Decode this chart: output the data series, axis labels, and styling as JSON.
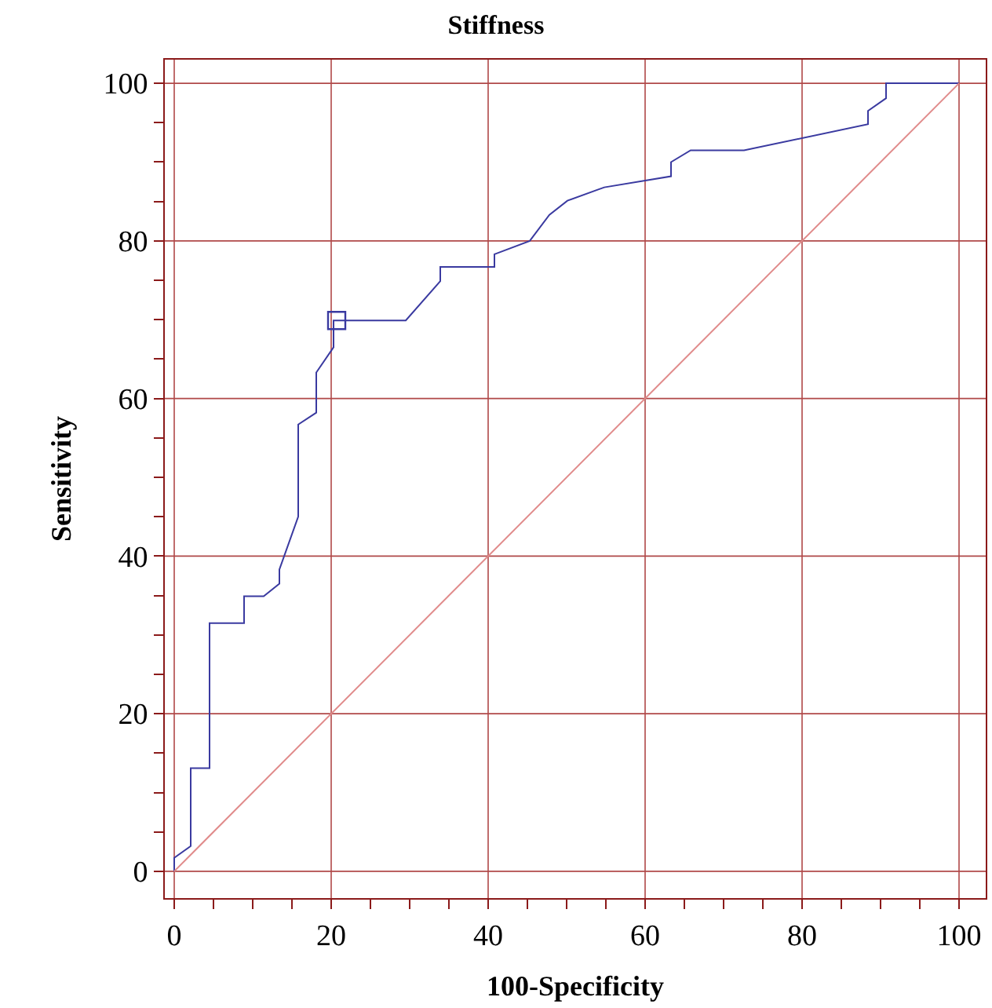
{
  "chart_data": {
    "type": "line",
    "title": "Stiffness",
    "xlabel": "100-Specificity",
    "ylabel": "Sensitivity",
    "series": [
      {
        "color": "#3a3aa0",
        "x": [
          0,
          0,
          2.1,
          2.1,
          4.5,
          4.5,
          8.9,
          8.9,
          11.4,
          13.4,
          13.4,
          15.8,
          15.8,
          18.1,
          18.1,
          20.3,
          20.3,
          29.5,
          33.9,
          33.9,
          40.8,
          40.8,
          45.3,
          47.8,
          50.1,
          54.8,
          63.3,
          63.3,
          65.8,
          72.6,
          88.4,
          88.4,
          90.7,
          90.7,
          100
        ],
        "values": [
          0,
          1.7,
          3.2,
          13.1,
          13.1,
          31.5,
          31.5,
          34.9,
          34.9,
          36.5,
          38.3,
          45,
          56.7,
          58.2,
          63.3,
          66.5,
          69.9,
          69.9,
          74.9,
          76.7,
          76.7,
          78.3,
          80,
          83.3,
          85.1,
          86.8,
          88.2,
          90,
          91.5,
          91.5,
          94.8,
          96.5,
          98.1,
          100,
          100
        ]
      },
      {
        "color": "#e08a8a",
        "x": [
          0,
          100
        ],
        "values": [
          0,
          100
        ]
      },
      {
        "type": "scatter",
        "color": "#3a3aa0",
        "marker": "square",
        "x": [
          20.7
        ],
        "values": [
          69.9
        ]
      }
    ],
    "xlim": [
      -1.2,
      103.4
    ],
    "ylim": [
      -3.4,
      103
    ],
    "xticks": [
      0,
      {
        "value": 5,
        "label": null
      },
      {
        "value": 10,
        "label": null
      },
      {
        "value": 15,
        "label": null
      },
      20,
      {
        "value": 25,
        "label": null
      },
      {
        "value": 30,
        "label": null
      },
      {
        "value": 35,
        "label": null
      },
      40,
      {
        "value": 45,
        "label": null
      },
      {
        "value": 50,
        "label": null
      },
      {
        "value": 55,
        "label": null
      },
      60,
      {
        "value": 65,
        "label": null
      },
      {
        "value": 70,
        "label": null
      },
      {
        "value": 75,
        "label": null
      },
      80,
      {
        "value": 85,
        "label": null
      },
      {
        "value": 90,
        "label": null
      },
      {
        "value": 95,
        "label": null
      },
      100
    ],
    "yticks": [
      0,
      {
        "value": 5,
        "label": null
      },
      {
        "value": 10,
        "label": null
      },
      {
        "value": 15,
        "label": null
      },
      20,
      {
        "value": 25,
        "label": null
      },
      {
        "value": 30,
        "label": null
      },
      {
        "value": 35,
        "label": null
      },
      40,
      {
        "value": 45,
        "label": null
      },
      {
        "value": 50,
        "label": null
      },
      {
        "value": 55,
        "label": null
      },
      60,
      {
        "value": 65,
        "label": null
      },
      {
        "value": 70,
        "label": null
      },
      {
        "value": 75,
        "label": null
      },
      80,
      {
        "value": 85,
        "label": null
      },
      {
        "value": 90,
        "label": null
      },
      {
        "value": 95,
        "label": null
      },
      100
    ],
    "grid": true
  }
}
